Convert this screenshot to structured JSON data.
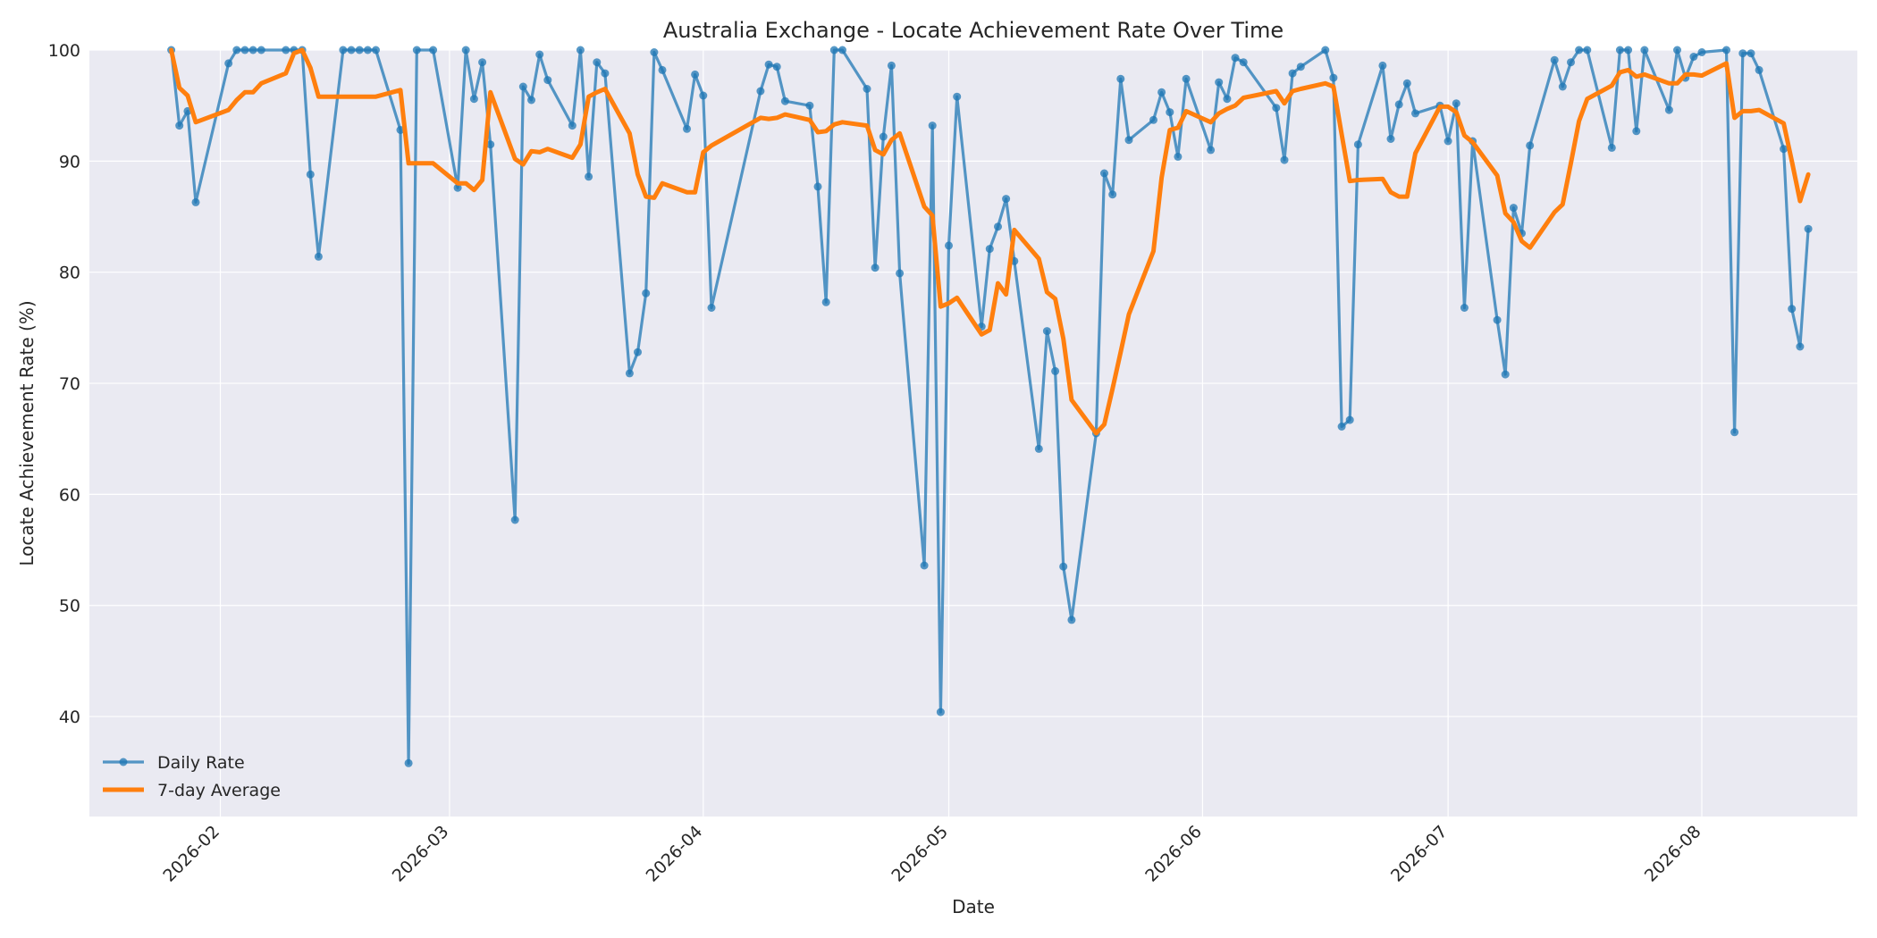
{
  "chart_data": {
    "type": "line",
    "title": "Australia Exchange - Locate Achievement Rate Over Time",
    "xlabel": "Date",
    "ylabel": "Locate Achievement Rate (%)",
    "xlim": [
      "2026-01-16",
      "2026-08-20"
    ],
    "ylim": [
      31,
      100
    ],
    "x_ticks": [
      "2026-02-01",
      "2026-03-01",
      "2026-04-01",
      "2026-05-01",
      "2026-06-01",
      "2026-07-01",
      "2026-08-01"
    ],
    "x_tick_labels": [
      "2026-02",
      "2026-03",
      "2026-04",
      "2026-05",
      "2026-06",
      "2026-07",
      "2026-08"
    ],
    "y_ticks": [
      40,
      50,
      60,
      70,
      80,
      90,
      100
    ],
    "grid": true,
    "legend_position": "lower-left",
    "series": [
      {
        "name": "Daily Rate",
        "color": "#1f77b4",
        "marker": "circle",
        "points": [
          [
            "2026-01-26",
            100
          ],
          [
            "2026-01-27",
            93.2
          ],
          [
            "2026-01-28",
            94.5
          ],
          [
            "2026-01-29",
            86.3
          ],
          [
            "2026-02-02",
            98.8
          ],
          [
            "2026-02-03",
            100
          ],
          [
            "2026-02-04",
            100
          ],
          [
            "2026-02-05",
            100
          ],
          [
            "2026-02-06",
            100
          ],
          [
            "2026-02-09",
            100
          ],
          [
            "2026-02-10",
            100
          ],
          [
            "2026-02-11",
            100
          ],
          [
            "2026-02-12",
            88.8
          ],
          [
            "2026-02-13",
            81.4
          ],
          [
            "2026-02-16",
            100
          ],
          [
            "2026-02-17",
            100
          ],
          [
            "2026-02-18",
            100
          ],
          [
            "2026-02-19",
            100
          ],
          [
            "2026-02-20",
            100
          ],
          [
            "2026-02-23",
            92.8
          ],
          [
            "2026-02-24",
            35.8
          ],
          [
            "2026-02-25",
            100
          ],
          [
            "2026-02-27",
            100
          ],
          [
            "2026-03-02",
            87.6
          ],
          [
            "2026-03-03",
            100
          ],
          [
            "2026-03-04",
            95.6
          ],
          [
            "2026-03-05",
            98.9
          ],
          [
            "2026-03-06",
            91.5
          ],
          [
            "2026-03-09",
            57.7
          ],
          [
            "2026-03-10",
            96.7
          ],
          [
            "2026-03-11",
            95.5
          ],
          [
            "2026-03-12",
            99.6
          ],
          [
            "2026-03-13",
            97.3
          ],
          [
            "2026-03-16",
            93.2
          ],
          [
            "2026-03-17",
            100
          ],
          [
            "2026-03-18",
            88.6
          ],
          [
            "2026-03-19",
            98.9
          ],
          [
            "2026-03-20",
            97.9
          ],
          [
            "2026-03-23",
            70.9
          ],
          [
            "2026-03-24",
            72.8
          ],
          [
            "2026-03-25",
            78.1
          ],
          [
            "2026-03-26",
            99.8
          ],
          [
            "2026-03-27",
            98.2
          ],
          [
            "2026-03-30",
            92.9
          ],
          [
            "2026-03-31",
            97.8
          ],
          [
            "2026-04-01",
            95.9
          ],
          [
            "2026-04-02",
            76.8
          ],
          [
            "2026-04-08",
            96.3
          ],
          [
            "2026-04-09",
            98.7
          ],
          [
            "2026-04-10",
            98.5
          ],
          [
            "2026-04-11",
            95.4
          ],
          [
            "2026-04-14",
            95.0
          ],
          [
            "2026-04-15",
            87.7
          ],
          [
            "2026-04-16",
            77.3
          ],
          [
            "2026-04-17",
            100
          ],
          [
            "2026-04-18",
            100
          ],
          [
            "2026-04-21",
            96.5
          ],
          [
            "2026-04-22",
            80.4
          ],
          [
            "2026-04-23",
            92.2
          ],
          [
            "2026-04-24",
            98.6
          ],
          [
            "2026-04-25",
            79.9
          ],
          [
            "2026-04-28",
            53.6
          ],
          [
            "2026-04-29",
            93.2
          ],
          [
            "2026-04-30",
            40.4
          ],
          [
            "2026-05-01",
            82.4
          ],
          [
            "2026-05-02",
            95.8
          ],
          [
            "2026-05-05",
            75.1
          ],
          [
            "2026-05-06",
            82.1
          ],
          [
            "2026-05-07",
            84.1
          ],
          [
            "2026-05-08",
            86.6
          ],
          [
            "2026-05-09",
            81.0
          ],
          [
            "2026-05-12",
            64.1
          ],
          [
            "2026-05-13",
            74.7
          ],
          [
            "2026-05-14",
            71.1
          ],
          [
            "2026-05-15",
            53.5
          ],
          [
            "2026-05-16",
            48.7
          ],
          [
            "2026-05-19",
            65.5
          ],
          [
            "2026-05-20",
            88.9
          ],
          [
            "2026-05-21",
            87.0
          ],
          [
            "2026-05-22",
            97.4
          ],
          [
            "2026-05-23",
            91.9
          ],
          [
            "2026-05-26",
            93.7
          ],
          [
            "2026-05-27",
            96.2
          ],
          [
            "2026-05-28",
            94.4
          ],
          [
            "2026-05-29",
            90.4
          ],
          [
            "2026-05-30",
            97.4
          ],
          [
            "2026-06-02",
            91.0
          ],
          [
            "2026-06-03",
            97.1
          ],
          [
            "2026-06-04",
            95.6
          ],
          [
            "2026-06-05",
            99.3
          ],
          [
            "2026-06-06",
            98.9
          ],
          [
            "2026-06-10",
            94.8
          ],
          [
            "2026-06-11",
            90.1
          ],
          [
            "2026-06-12",
            97.9
          ],
          [
            "2026-06-13",
            98.5
          ],
          [
            "2026-06-16",
            100
          ],
          [
            "2026-06-17",
            97.5
          ],
          [
            "2026-06-18",
            66.1
          ],
          [
            "2026-06-19",
            66.7
          ],
          [
            "2026-06-20",
            91.5
          ],
          [
            "2026-06-23",
            98.6
          ],
          [
            "2026-06-24",
            92.0
          ],
          [
            "2026-06-25",
            95.1
          ],
          [
            "2026-06-26",
            97.0
          ],
          [
            "2026-06-27",
            94.3
          ],
          [
            "2026-06-30",
            95.0
          ],
          [
            "2026-07-01",
            91.8
          ],
          [
            "2026-07-02",
            95.2
          ],
          [
            "2026-07-03",
            76.8
          ],
          [
            "2026-07-04",
            91.8
          ],
          [
            "2026-07-07",
            75.7
          ],
          [
            "2026-07-08",
            70.8
          ],
          [
            "2026-07-09",
            85.8
          ],
          [
            "2026-07-10",
            83.5
          ],
          [
            "2026-07-11",
            91.4
          ],
          [
            "2026-07-14",
            99.1
          ],
          [
            "2026-07-15",
            96.7
          ],
          [
            "2026-07-16",
            98.9
          ],
          [
            "2026-07-17",
            100
          ],
          [
            "2026-07-18",
            100
          ],
          [
            "2026-07-21",
            91.2
          ],
          [
            "2026-07-22",
            100
          ],
          [
            "2026-07-23",
            100
          ],
          [
            "2026-07-24",
            92.7
          ],
          [
            "2026-07-25",
            100
          ],
          [
            "2026-07-28",
            94.6
          ],
          [
            "2026-07-29",
            100
          ],
          [
            "2026-07-30",
            97.5
          ],
          [
            "2026-07-31",
            99.4
          ],
          [
            "2026-08-01",
            99.8
          ],
          [
            "2026-08-04",
            100
          ],
          [
            "2026-08-05",
            65.6
          ],
          [
            "2026-08-06",
            99.7
          ],
          [
            "2026-08-07",
            99.7
          ],
          [
            "2026-08-08",
            98.2
          ],
          [
            "2026-08-11",
            91.1
          ],
          [
            "2026-08-12",
            76.7
          ],
          [
            "2026-08-13",
            73.3
          ],
          [
            "2026-08-14",
            83.9
          ]
        ]
      },
      {
        "name": "7-day Average",
        "color": "#ff7f0e",
        "marker": "none",
        "points": [
          [
            "2026-01-26",
            100
          ],
          [
            "2026-01-27",
            96.6
          ],
          [
            "2026-01-28",
            95.9
          ],
          [
            "2026-01-29",
            93.5
          ],
          [
            "2026-02-02",
            94.6
          ],
          [
            "2026-02-03",
            95.5
          ],
          [
            "2026-02-04",
            96.2
          ],
          [
            "2026-02-05",
            96.2
          ],
          [
            "2026-02-06",
            97.0
          ],
          [
            "2026-02-09",
            97.9
          ],
          [
            "2026-02-10",
            99.7
          ],
          [
            "2026-02-11",
            100
          ],
          [
            "2026-02-12",
            98.4
          ],
          [
            "2026-02-13",
            95.8
          ],
          [
            "2026-02-16",
            95.8
          ],
          [
            "2026-02-17",
            95.8
          ],
          [
            "2026-02-18",
            95.8
          ],
          [
            "2026-02-19",
            95.8
          ],
          [
            "2026-02-20",
            95.8
          ],
          [
            "2026-02-23",
            96.4
          ],
          [
            "2026-02-24",
            89.8
          ],
          [
            "2026-02-25",
            89.8
          ],
          [
            "2026-02-27",
            89.8
          ],
          [
            "2026-03-02",
            88.0
          ],
          [
            "2026-03-03",
            88.0
          ],
          [
            "2026-03-04",
            87.4
          ],
          [
            "2026-03-05",
            88.3
          ],
          [
            "2026-03-06",
            96.2
          ],
          [
            "2026-03-09",
            90.2
          ],
          [
            "2026-03-10",
            89.7
          ],
          [
            "2026-03-11",
            90.9
          ],
          [
            "2026-03-12",
            90.8
          ],
          [
            "2026-03-13",
            91.1
          ],
          [
            "2026-03-16",
            90.3
          ],
          [
            "2026-03-17",
            91.5
          ],
          [
            "2026-03-18",
            95.8
          ],
          [
            "2026-03-19",
            96.2
          ],
          [
            "2026-03-20",
            96.5
          ],
          [
            "2026-03-23",
            92.5
          ],
          [
            "2026-03-24",
            88.8
          ],
          [
            "2026-03-25",
            86.8
          ],
          [
            "2026-03-26",
            86.7
          ],
          [
            "2026-03-27",
            88.0
          ],
          [
            "2026-03-30",
            87.2
          ],
          [
            "2026-03-31",
            87.2
          ],
          [
            "2026-04-01",
            90.8
          ],
          [
            "2026-04-02",
            91.4
          ],
          [
            "2026-04-08",
            93.9
          ],
          [
            "2026-04-09",
            93.8
          ],
          [
            "2026-04-10",
            93.9
          ],
          [
            "2026-04-11",
            94.2
          ],
          [
            "2026-04-14",
            93.7
          ],
          [
            "2026-04-15",
            92.6
          ],
          [
            "2026-04-16",
            92.7
          ],
          [
            "2026-04-17",
            93.3
          ],
          [
            "2026-04-18",
            93.5
          ],
          [
            "2026-04-21",
            93.2
          ],
          [
            "2026-04-22",
            91.0
          ],
          [
            "2026-04-23",
            90.6
          ],
          [
            "2026-04-24",
            91.9
          ],
          [
            "2026-04-25",
            92.5
          ],
          [
            "2026-04-28",
            85.9
          ],
          [
            "2026-04-29",
            85.1
          ],
          [
            "2026-04-30",
            76.9
          ],
          [
            "2026-05-01",
            77.2
          ],
          [
            "2026-05-02",
            77.7
          ],
          [
            "2026-05-05",
            74.4
          ],
          [
            "2026-05-06",
            74.8
          ],
          [
            "2026-05-07",
            79.0
          ],
          [
            "2026-05-08",
            78.0
          ],
          [
            "2026-05-09",
            83.8
          ],
          [
            "2026-05-12",
            81.2
          ],
          [
            "2026-05-13",
            78.2
          ],
          [
            "2026-05-14",
            77.6
          ],
          [
            "2026-05-15",
            74.0
          ],
          [
            "2026-05-16",
            68.5
          ],
          [
            "2026-05-19",
            65.5
          ],
          [
            "2026-05-20",
            66.3
          ],
          [
            "2026-05-21",
            69.5
          ],
          [
            "2026-05-22",
            72.8
          ],
          [
            "2026-05-23",
            76.2
          ],
          [
            "2026-05-26",
            81.9
          ],
          [
            "2026-05-27",
            88.5
          ],
          [
            "2026-05-28",
            92.8
          ],
          [
            "2026-05-29",
            93.0
          ],
          [
            "2026-05-30",
            94.5
          ],
          [
            "2026-06-02",
            93.5
          ],
          [
            "2026-06-03",
            94.3
          ],
          [
            "2026-06-04",
            94.7
          ],
          [
            "2026-06-05",
            95.0
          ],
          [
            "2026-06-06",
            95.7
          ],
          [
            "2026-06-10",
            96.3
          ],
          [
            "2026-06-11",
            95.2
          ],
          [
            "2026-06-12",
            96.3
          ],
          [
            "2026-06-13",
            96.5
          ],
          [
            "2026-06-16",
            97.0
          ],
          [
            "2026-06-17",
            96.7
          ],
          [
            "2026-06-18",
            92.4
          ],
          [
            "2026-06-19",
            88.2
          ],
          [
            "2026-06-20",
            88.3
          ],
          [
            "2026-06-23",
            88.4
          ],
          [
            "2026-06-24",
            87.2
          ],
          [
            "2026-06-25",
            86.8
          ],
          [
            "2026-06-26",
            86.8
          ],
          [
            "2026-06-27",
            90.7
          ],
          [
            "2026-06-30",
            94.9
          ],
          [
            "2026-07-01",
            94.9
          ],
          [
            "2026-07-02",
            94.4
          ],
          [
            "2026-07-03",
            92.3
          ],
          [
            "2026-07-04",
            91.7
          ],
          [
            "2026-07-07",
            88.7
          ],
          [
            "2026-07-08",
            85.3
          ],
          [
            "2026-07-09",
            84.5
          ],
          [
            "2026-07-10",
            82.8
          ],
          [
            "2026-07-11",
            82.2
          ],
          [
            "2026-07-14",
            85.4
          ],
          [
            "2026-07-15",
            86.1
          ],
          [
            "2026-07-16",
            89.8
          ],
          [
            "2026-07-17",
            93.6
          ],
          [
            "2026-07-18",
            95.6
          ],
          [
            "2026-07-21",
            96.8
          ],
          [
            "2026-07-22",
            98.0
          ],
          [
            "2026-07-23",
            98.2
          ],
          [
            "2026-07-24",
            97.6
          ],
          [
            "2026-07-25",
            97.8
          ],
          [
            "2026-07-28",
            97.0
          ],
          [
            "2026-07-29",
            97.0
          ],
          [
            "2026-07-30",
            97.8
          ],
          [
            "2026-07-31",
            97.8
          ],
          [
            "2026-08-01",
            97.7
          ],
          [
            "2026-08-04",
            98.8
          ],
          [
            "2026-08-05",
            93.9
          ],
          [
            "2026-08-06",
            94.5
          ],
          [
            "2026-08-07",
            94.5
          ],
          [
            "2026-08-08",
            94.6
          ],
          [
            "2026-08-11",
            93.4
          ],
          [
            "2026-08-12",
            90.0
          ],
          [
            "2026-08-13",
            86.4
          ],
          [
            "2026-08-14",
            88.8
          ]
        ]
      }
    ]
  }
}
